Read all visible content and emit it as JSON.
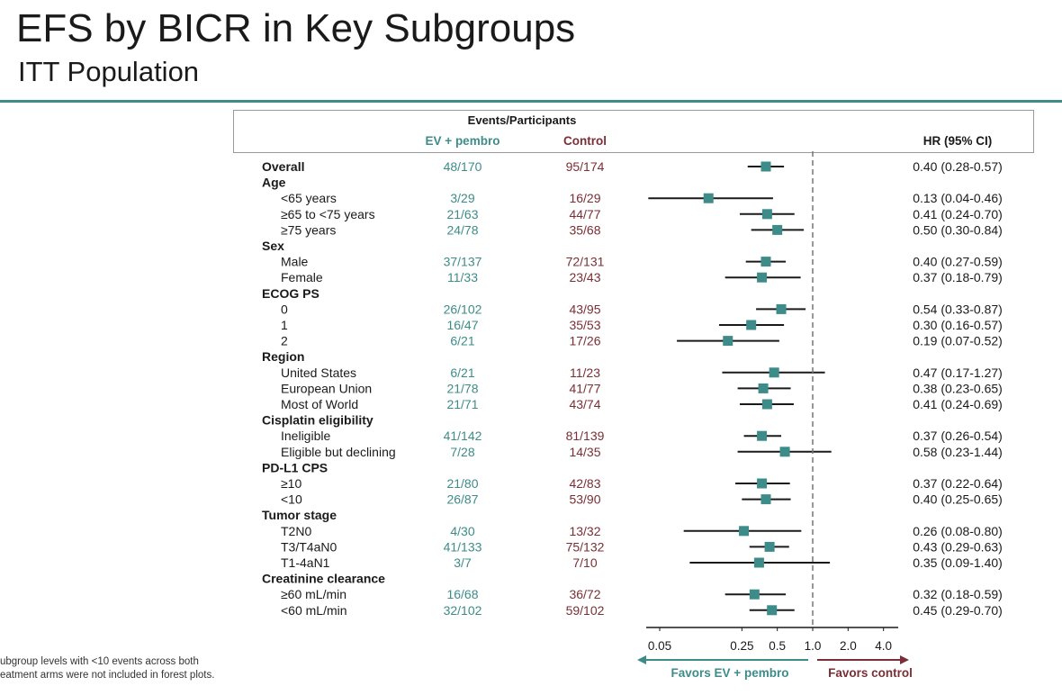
{
  "header": {
    "title": "EFS by BICR in Key Subgroups",
    "subtitle": "ITT Population"
  },
  "table": {
    "events_header": "Events/Participants",
    "col_arm1": "EV + pembro",
    "col_arm2": "Control",
    "col_hr": "HR (95% CI)"
  },
  "colors": {
    "teal": "#3d8c8a",
    "maroon": "#7a2e35",
    "marker": "#3d8c8a"
  },
  "axis": {
    "ticks": [
      "0.05",
      "0.25",
      "0.5",
      "1.0",
      "2.0",
      "4.0"
    ],
    "favors_left": "Favors EV + pembro",
    "favors_right": "Favors control"
  },
  "footnote": "ubgroup levels with <10 events across both\neatment arms were not included in forest plots.",
  "chart_data": {
    "type": "forest",
    "scale": "log",
    "xlim": [
      0.05,
      4.0
    ],
    "reference_line": 1.0,
    "rows": [
      {
        "label": "Overall",
        "bold": true,
        "ev": "48/170",
        "ctrl": "95/174",
        "hr": 0.4,
        "lo": 0.28,
        "hi": 0.57,
        "text": "0.40 (0.28-0.57)"
      },
      {
        "label": "Age",
        "bold": true,
        "header": true
      },
      {
        "label": "<65 years",
        "ev": "3/29",
        "ctrl": "16/29",
        "hr": 0.13,
        "lo": 0.04,
        "hi": 0.46,
        "text": "0.13 (0.04-0.46)"
      },
      {
        "label": "≥65 to <75 years",
        "ev": "21/63",
        "ctrl": "44/77",
        "hr": 0.41,
        "lo": 0.24,
        "hi": 0.7,
        "text": "0.41 (0.24-0.70)"
      },
      {
        "label": "≥75 years",
        "ev": "24/78",
        "ctrl": "35/68",
        "hr": 0.5,
        "lo": 0.3,
        "hi": 0.84,
        "text": "0.50 (0.30-0.84)"
      },
      {
        "label": "Sex",
        "bold": true,
        "header": true
      },
      {
        "label": "Male",
        "ev": "37/137",
        "ctrl": "72/131",
        "hr": 0.4,
        "lo": 0.27,
        "hi": 0.59,
        "text": "0.40 (0.27-0.59)"
      },
      {
        "label": "Female",
        "ev": "11/33",
        "ctrl": "23/43",
        "hr": 0.37,
        "lo": 0.18,
        "hi": 0.79,
        "text": "0.37 (0.18-0.79)"
      },
      {
        "label": "ECOG PS",
        "bold": true,
        "header": true
      },
      {
        "label": "0",
        "ev": "26/102",
        "ctrl": "43/95",
        "hr": 0.54,
        "lo": 0.33,
        "hi": 0.87,
        "text": "0.54 (0.33-0.87)"
      },
      {
        "label": "1",
        "ev": "16/47",
        "ctrl": "35/53",
        "hr": 0.3,
        "lo": 0.16,
        "hi": 0.57,
        "text": "0.30 (0.16-0.57)"
      },
      {
        "label": "2",
        "ev": "6/21",
        "ctrl": "17/26",
        "hr": 0.19,
        "lo": 0.07,
        "hi": 0.52,
        "text": "0.19 (0.07-0.52)"
      },
      {
        "label": "Region",
        "bold": true,
        "header": true
      },
      {
        "label": "United States",
        "ev": "6/21",
        "ctrl": "11/23",
        "hr": 0.47,
        "lo": 0.17,
        "hi": 1.27,
        "text": "0.47 (0.17-1.27)"
      },
      {
        "label": "European Union",
        "ev": "21/78",
        "ctrl": "41/77",
        "hr": 0.38,
        "lo": 0.23,
        "hi": 0.65,
        "text": "0.38 (0.23-0.65)"
      },
      {
        "label": "Most of World",
        "ev": "21/71",
        "ctrl": "43/74",
        "hr": 0.41,
        "lo": 0.24,
        "hi": 0.69,
        "text": "0.41 (0.24-0.69)"
      },
      {
        "label": "Cisplatin eligibility",
        "bold": true,
        "header": true
      },
      {
        "label": "Ineligible",
        "ev": "41/142",
        "ctrl": "81/139",
        "hr": 0.37,
        "lo": 0.26,
        "hi": 0.54,
        "text": "0.37 (0.26-0.54)"
      },
      {
        "label": "Eligible but declining",
        "ev": "7/28",
        "ctrl": "14/35",
        "hr": 0.58,
        "lo": 0.23,
        "hi": 1.44,
        "text": "0.58 (0.23-1.44)"
      },
      {
        "label": "PD-L1 CPS",
        "bold": true,
        "header": true
      },
      {
        "label": "≥10",
        "ev": "21/80",
        "ctrl": "42/83",
        "hr": 0.37,
        "lo": 0.22,
        "hi": 0.64,
        "text": "0.37 (0.22-0.64)"
      },
      {
        "label": "<10",
        "ev": "26/87",
        "ctrl": "53/90",
        "hr": 0.4,
        "lo": 0.25,
        "hi": 0.65,
        "text": "0.40 (0.25-0.65)"
      },
      {
        "label": "Tumor stage",
        "bold": true,
        "header": true
      },
      {
        "label": "T2N0",
        "ev": "4/30",
        "ctrl": "13/32",
        "hr": 0.26,
        "lo": 0.08,
        "hi": 0.8,
        "text": "0.26 (0.08-0.80)"
      },
      {
        "label": "T3/T4aN0",
        "ev": "41/133",
        "ctrl": "75/132",
        "hr": 0.43,
        "lo": 0.29,
        "hi": 0.63,
        "text": "0.43 (0.29-0.63)"
      },
      {
        "label": "T1-4aN1",
        "ev": "3/7",
        "ctrl": "7/10",
        "hr": 0.35,
        "lo": 0.09,
        "hi": 1.4,
        "text": "0.35 (0.09-1.40)"
      },
      {
        "label": "Creatinine clearance",
        "bold": true,
        "header": true
      },
      {
        "label": "≥60 mL/min",
        "ev": "16/68",
        "ctrl": "36/72",
        "hr": 0.32,
        "lo": 0.18,
        "hi": 0.59,
        "text": "0.32 (0.18-0.59)"
      },
      {
        "label": "<60 mL/min",
        "ev": "32/102",
        "ctrl": "59/102",
        "hr": 0.45,
        "lo": 0.29,
        "hi": 0.7,
        "text": "0.45 (0.29-0.70)"
      }
    ]
  }
}
